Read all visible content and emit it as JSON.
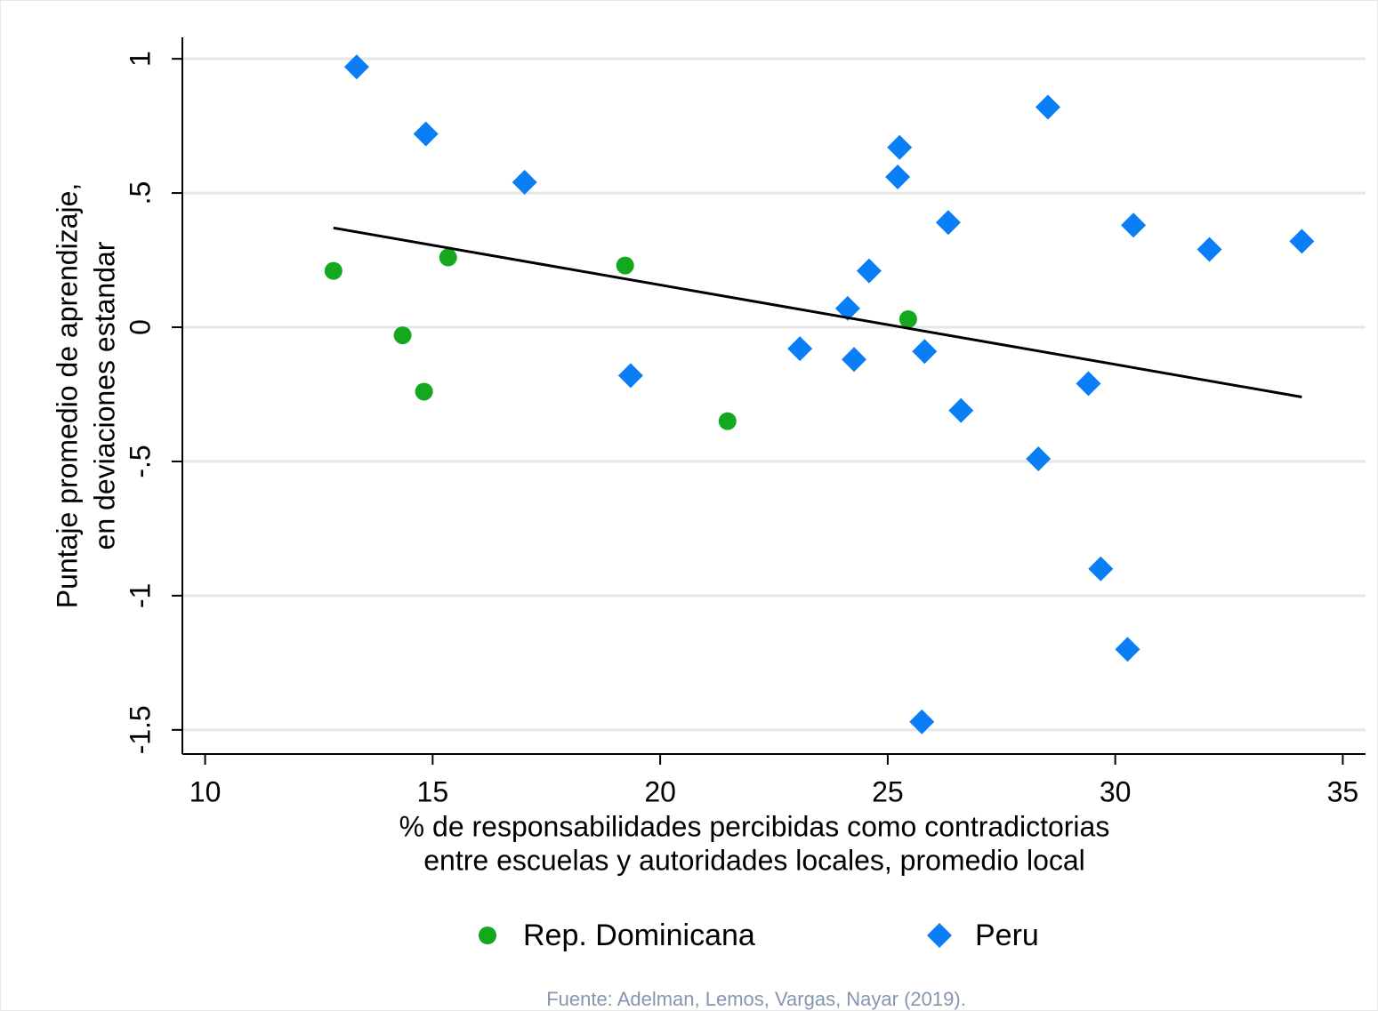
{
  "chart_data": {
    "type": "scatter",
    "x_label": [
      "% de responsabilidades percibidas como contradictorias",
      "entre escuelas y autoridades locales, promedio local"
    ],
    "y_label": [
      "Puntaje promedio de aprendizaje,",
      "en deviaciones estandar"
    ],
    "source": "Fuente: Adelman, Lemos, Vargas, Nayar (2019).",
    "xlim": [
      9.5,
      35.5
    ],
    "xticks": [
      10,
      15,
      20,
      25,
      30,
      35
    ],
    "ylim": [
      -1.59,
      1.08
    ],
    "yticks": [
      {
        "value": -1.5,
        "label": "-1.5"
      },
      -1,
      {
        "value": -0.5,
        "label": "-.5"
      },
      0,
      {
        "value": 0.5,
        "label": ".5"
      },
      1
    ],
    "grid": true,
    "legend": "bottom",
    "series": [
      {
        "name": "Rep. Dominicana",
        "color": "#14a81e",
        "marker": "circle",
        "x": [
          12.82,
          14.34,
          14.81,
          15.34,
          19.23,
          21.48,
          25.45
        ],
        "values": [
          0.21,
          -0.03,
          -0.24,
          0.26,
          0.23,
          -0.35,
          0.03
        ]
      },
      {
        "name": "Peru",
        "color": "#0a7ef5",
        "marker": "diamond",
        "x": [
          13.33,
          14.85,
          17.02,
          19.35,
          23.07,
          24.12,
          24.26,
          24.59,
          25.26,
          25.22,
          25.75,
          25.81,
          26.33,
          26.61,
          28.31,
          28.52,
          29.41,
          29.68,
          30.27,
          30.4,
          32.07,
          34.1
        ],
        "values": [
          0.97,
          0.72,
          0.54,
          -0.18,
          -0.08,
          0.07,
          -0.12,
          0.21,
          0.67,
          0.56,
          -1.47,
          -0.09,
          0.39,
          -0.31,
          -0.49,
          0.82,
          -0.21,
          -0.9,
          -1.2,
          0.38,
          0.29,
          0.32
        ]
      }
    ],
    "fit_line": {
      "color": "#000000",
      "x": [
        12.82,
        34.1
      ],
      "values": [
        0.37,
        -0.26
      ]
    }
  }
}
